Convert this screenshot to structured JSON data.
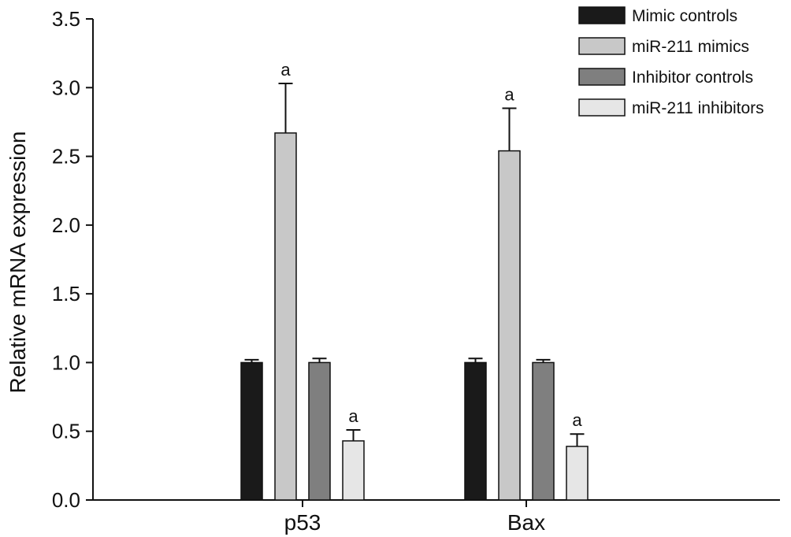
{
  "chart_data": {
    "type": "bar",
    "categories": [
      "p53",
      "Bax"
    ],
    "ylabel": "Relative mRNA expression",
    "ylim": [
      0,
      3.5
    ],
    "yticks": [
      "0.0",
      "0.5",
      "1.0",
      "1.5",
      "2.0",
      "2.5",
      "3.0",
      "3.5"
    ],
    "legend_position": "top-right",
    "grid": false,
    "series": [
      {
        "name": "Mimic controls",
        "color": "#1a1a1a",
        "values": [
          1.0,
          1.0
        ],
        "errors": [
          0.02,
          0.03
        ],
        "annotations": [
          "",
          ""
        ]
      },
      {
        "name": "miR-211 mimics",
        "color": "#c8c8c8",
        "values": [
          2.67,
          2.54
        ],
        "errors": [
          0.36,
          0.31
        ],
        "annotations": [
          "a",
          "a"
        ]
      },
      {
        "name": "Inhibitor controls",
        "color": "#7f7f7f",
        "values": [
          1.0,
          1.0
        ],
        "errors": [
          0.03,
          0.02
        ],
        "annotations": [
          "",
          ""
        ]
      },
      {
        "name": "miR-211 inhibitors",
        "color": "#e6e6e6",
        "values": [
          0.43,
          0.39
        ],
        "errors": [
          0.08,
          0.09
        ],
        "annotations": [
          "a",
          "a"
        ]
      }
    ]
  }
}
